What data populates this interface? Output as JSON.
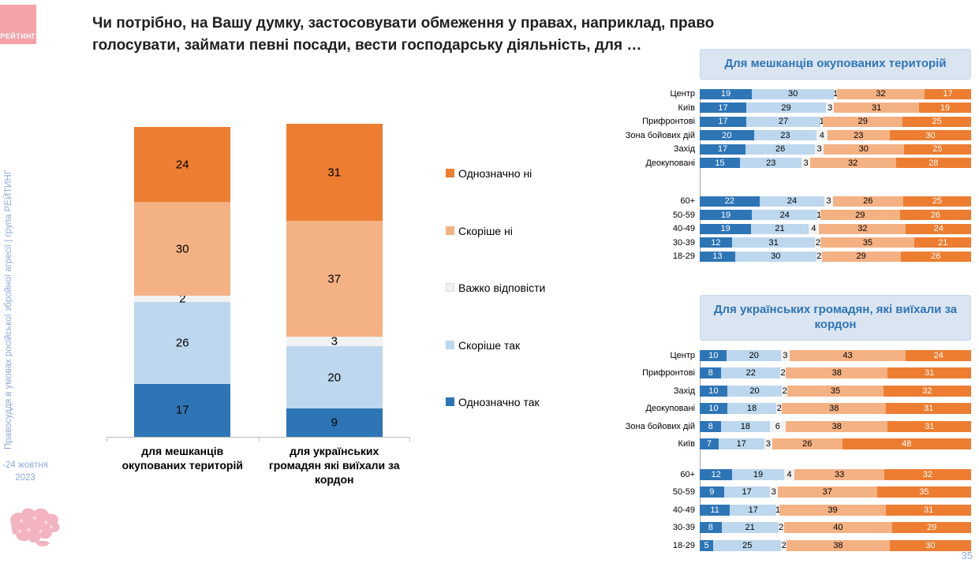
{
  "title": "Чи потрібно, на Вашу думку, застосовувати обмеження у правах, наприклад, право голосувати, займати певні посади, вести господарську діяльність, для …",
  "sidebar": {
    "logo": "РЕЙТИНГ",
    "vertical_text": "Правосуддя в умовах російської збройної агресії | група РЕЙТИНГ",
    "date_line1": "-24 жовтня",
    "date_line2": "2023"
  },
  "page_number": "35",
  "colors": {
    "definitely_yes": "#2e75b6",
    "rather_yes": "#bdd7ee",
    "hard_to_say": "#f2f2f2",
    "rather_no": "#f4b183",
    "definitely_no": "#ed7d31",
    "header_bg": "#dbe5f1",
    "header_text": "#2e75b6",
    "sidebar_text": "#8eaadb",
    "logo_pink": "#f5a3a8"
  },
  "legend": [
    {
      "label": "Однозначно ні",
      "color_key": "definitely_no"
    },
    {
      "label": "Скоріше ні",
      "color_key": "rather_no"
    },
    {
      "label": "Важко відповісти",
      "color_key": "hard_to_say"
    },
    {
      "label": "Скоріше так",
      "color_key": "rather_yes"
    },
    {
      "label": "Однозначно так",
      "color_key": "definitely_yes"
    }
  ],
  "chart_data": [
    {
      "type": "bar",
      "subtype": "stacked-column",
      "categories": [
        "для мешканців окупованих територій",
        "для українських громадян які виїхали за кордон"
      ],
      "series": [
        {
          "name": "Однозначно так",
          "values": [
            17,
            9
          ]
        },
        {
          "name": "Скоріше так",
          "values": [
            26,
            20
          ]
        },
        {
          "name": "Важко відповісти",
          "values": [
            2,
            3
          ]
        },
        {
          "name": "Скоріше ні",
          "values": [
            30,
            37
          ]
        },
        {
          "name": "Однозначно ні",
          "values": [
            24,
            31
          ]
        }
      ],
      "ylim": [
        0,
        100
      ],
      "grid": false,
      "legend_position": "right"
    },
    {
      "type": "bar",
      "subtype": "stacked-horizontal",
      "title": "Для мешканців окупованих територій",
      "series_order": [
        "Однозначно так",
        "Скоріше так",
        "Важко відповісти",
        "Скоріше ні",
        "Однозначно ні"
      ],
      "xlim": [
        0,
        100
      ],
      "groups": [
        {
          "rows": [
            {
              "label": "Центр",
              "values": [
                19,
                30,
                1,
                32,
                17
              ]
            },
            {
              "label": "Київ",
              "values": [
                17,
                29,
                3,
                31,
                19
              ]
            },
            {
              "label": "Прифронтові",
              "values": [
                17,
                27,
                1,
                29,
                25
              ]
            },
            {
              "label": "Зона бойових дій",
              "values": [
                20,
                23,
                4,
                23,
                30
              ]
            },
            {
              "label": "Захід",
              "values": [
                17,
                26,
                3,
                30,
                25
              ]
            },
            {
              "label": "Деокуповані",
              "values": [
                15,
                23,
                3,
                32,
                28
              ]
            }
          ]
        },
        {
          "rows": [
            {
              "label": "60+",
              "values": [
                22,
                24,
                3,
                26,
                25
              ]
            },
            {
              "label": "50-59",
              "values": [
                19,
                24,
                1,
                29,
                26
              ]
            },
            {
              "label": "40-49",
              "values": [
                19,
                21,
                4,
                32,
                24
              ]
            },
            {
              "label": "30-39",
              "values": [
                12,
                31,
                2,
                35,
                21
              ]
            },
            {
              "label": "18-29",
              "values": [
                13,
                30,
                2,
                29,
                26
              ]
            }
          ]
        }
      ]
    },
    {
      "type": "bar",
      "subtype": "stacked-horizontal",
      "title": "Для українських громадян, які виїхали за кордон",
      "series_order": [
        "Однозначно так",
        "Скоріше так",
        "Важко відповісти",
        "Скоріше ні",
        "Однозначно ні"
      ],
      "xlim": [
        0,
        100
      ],
      "groups": [
        {
          "rows": [
            {
              "label": "Центр",
              "values": [
                10,
                20,
                3,
                43,
                24
              ]
            },
            {
              "label": "Прифронтові",
              "values": [
                8,
                22,
                2,
                38,
                31
              ]
            },
            {
              "label": "Захід",
              "values": [
                10,
                20,
                2,
                35,
                32
              ]
            },
            {
              "label": "Деокуповані",
              "values": [
                10,
                18,
                2,
                38,
                31
              ]
            },
            {
              "label": "Зона бойових дій",
              "values": [
                8,
                18,
                6,
                38,
                31
              ]
            },
            {
              "label": "Київ",
              "values": [
                7,
                17,
                3,
                26,
                48
              ]
            }
          ]
        },
        {
          "rows": [
            {
              "label": "60+",
              "values": [
                12,
                19,
                4,
                33,
                32
              ]
            },
            {
              "label": "50-59",
              "values": [
                9,
                17,
                3,
                37,
                35
              ]
            },
            {
              "label": "40-49",
              "values": [
                11,
                17,
                1,
                39,
                31
              ]
            },
            {
              "label": "30-39",
              "values": [
                8,
                21,
                2,
                40,
                29
              ]
            },
            {
              "label": "18-29",
              "values": [
                5,
                25,
                2,
                38,
                30
              ]
            }
          ]
        }
      ]
    }
  ]
}
